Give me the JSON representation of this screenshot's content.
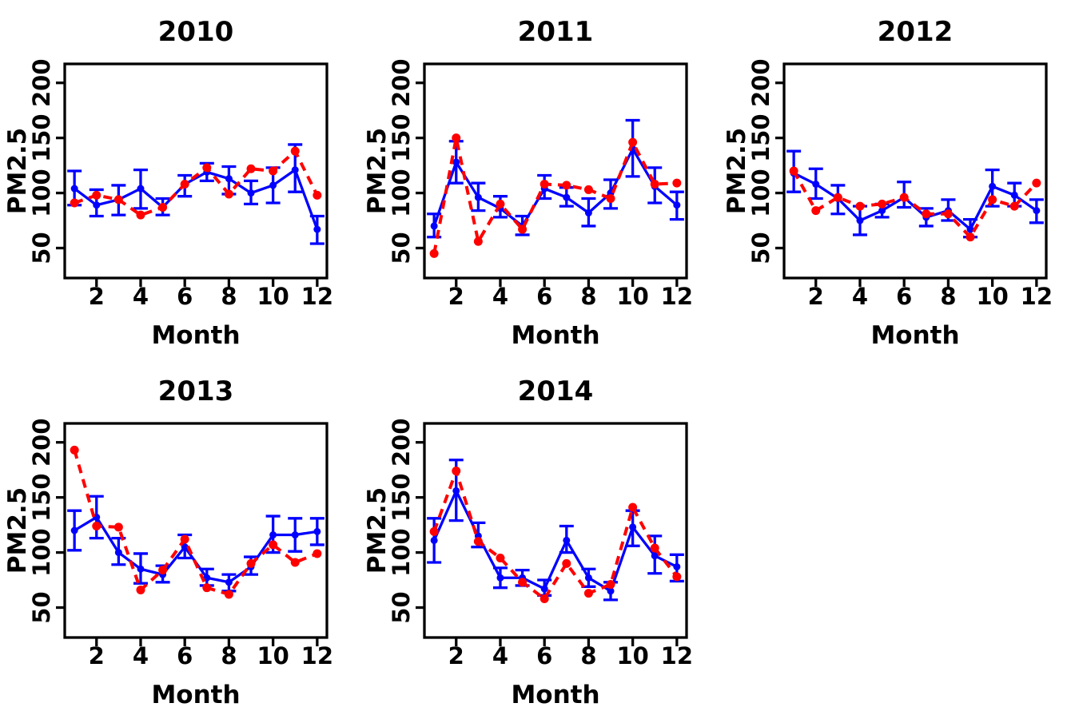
{
  "figure": {
    "background": "#ffffff",
    "grid_layout": {
      "columns": 3,
      "rows": 2,
      "filled_cells": 5
    }
  },
  "colors": {
    "blue_series": "#0000ff",
    "red_series": "#ff0000",
    "axis": "#000000",
    "text": "#000000"
  },
  "chart_data": [
    {
      "type": "line",
      "title": "2010",
      "xlabel": "Month",
      "ylabel": "PM2.5",
      "x": [
        1,
        2,
        3,
        4,
        5,
        6,
        7,
        8,
        9,
        10,
        11,
        12
      ],
      "xticks": [
        2,
        4,
        6,
        8,
        10,
        12
      ],
      "yticks": [
        50,
        100,
        150,
        200
      ],
      "xlim": [
        0.56,
        12.44
      ],
      "ylim": [
        22.8,
        217.2
      ],
      "grid": false,
      "legend": "none",
      "series": [
        {
          "name": "blue-solid-with-error-bars",
          "style": "solid",
          "color": "#0000ff",
          "marker": "circle",
          "values": [
            104,
            89,
            94,
            104,
            87,
            108,
            119,
            113,
            100,
            107,
            121,
            67
          ],
          "ci_low": [
            89,
            79,
            80,
            86,
            80,
            97,
            111,
            99,
            90,
            91,
            101,
            54
          ],
          "ci_high": [
            120,
            103,
            107,
            121,
            95,
            116,
            127,
            124,
            111,
            123,
            144,
            79
          ]
        },
        {
          "name": "red-dashed",
          "style": "dashed",
          "color": "#ff0000",
          "marker": "circle",
          "values": [
            91,
            98,
            94,
            80,
            87,
            108,
            123,
            99,
            122,
            120,
            138,
            98
          ]
        }
      ]
    },
    {
      "type": "line",
      "title": "2011",
      "xlabel": "Month",
      "ylabel": "PM2.5",
      "x": [
        1,
        2,
        3,
        4,
        5,
        6,
        7,
        8,
        9,
        10,
        11,
        12
      ],
      "xticks": [
        2,
        4,
        6,
        8,
        10,
        12
      ],
      "yticks": [
        50,
        100,
        150,
        200
      ],
      "xlim": [
        0.56,
        12.44
      ],
      "ylim": [
        22.8,
        217.2
      ],
      "grid": false,
      "legend": "none",
      "series": [
        {
          "name": "blue-solid-with-error-bars",
          "style": "solid",
          "color": "#0000ff",
          "marker": "circle",
          "values": [
            70,
            128,
            96,
            86,
            70,
            104,
            96,
            82,
            100,
            140,
            106,
            89
          ],
          "ci_low": [
            60,
            109,
            84,
            78,
            62,
            95,
            88,
            70,
            86,
            115,
            91,
            76
          ],
          "ci_high": [
            81,
            147,
            109,
            97,
            79,
            116,
            105,
            95,
            112,
            166,
            123,
            101
          ]
        },
        {
          "name": "red-dashed",
          "style": "dashed",
          "color": "#ff0000",
          "marker": "circle",
          "values": [
            45,
            150,
            56,
            90,
            67,
            108,
            107,
            103,
            95,
            146,
            108,
            109
          ]
        }
      ]
    },
    {
      "type": "line",
      "title": "2012",
      "xlabel": "Month",
      "ylabel": "PM2.5",
      "x": [
        1,
        2,
        3,
        4,
        5,
        6,
        7,
        8,
        9,
        10,
        11,
        12
      ],
      "xticks": [
        2,
        4,
        6,
        8,
        10,
        12
      ],
      "yticks": [
        50,
        100,
        150,
        200
      ],
      "xlim": [
        0.56,
        12.44
      ],
      "ylim": [
        22.8,
        217.2
      ],
      "grid": false,
      "legend": "none",
      "series": [
        {
          "name": "blue-solid-with-error-bars",
          "style": "solid",
          "color": "#0000ff",
          "marker": "circle",
          "values": [
            118,
            108,
            95,
            75,
            84,
            96,
            78,
            84,
            67,
            106,
            98,
            84
          ],
          "ci_low": [
            101,
            95,
            81,
            62,
            78,
            87,
            70,
            75,
            60,
            88,
            88,
            73
          ],
          "ci_high": [
            138,
            122,
            107,
            88,
            90,
            110,
            86,
            94,
            76,
            121,
            109,
            94
          ]
        },
        {
          "name": "red-dashed",
          "style": "dashed",
          "color": "#ff0000",
          "marker": "circle",
          "values": [
            120,
            84,
            96,
            88,
            90,
            96,
            81,
            81,
            60,
            94,
            88,
            109
          ]
        }
      ]
    },
    {
      "type": "line",
      "title": "2013",
      "xlabel": "Month",
      "ylabel": "PM2.5",
      "x": [
        1,
        2,
        3,
        4,
        5,
        6,
        7,
        8,
        9,
        10,
        11,
        12
      ],
      "xticks": [
        2,
        4,
        6,
        8,
        10,
        12
      ],
      "yticks": [
        50,
        100,
        150,
        200
      ],
      "xlim": [
        0.56,
        12.44
      ],
      "ylim": [
        22.8,
        217.2
      ],
      "grid": false,
      "legend": "none",
      "series": [
        {
          "name": "blue-solid-with-error-bars",
          "style": "solid",
          "color": "#0000ff",
          "marker": "circle",
          "values": [
            120,
            132,
            100,
            85,
            80,
            105,
            77,
            73,
            87,
            116,
            116,
            119
          ],
          "ci_low": [
            102,
            113,
            89,
            72,
            73,
            95,
            70,
            65,
            80,
            100,
            101,
            107
          ],
          "ci_high": [
            138,
            151,
            113,
            99,
            88,
            116,
            85,
            80,
            96,
            133,
            131,
            131
          ]
        },
        {
          "name": "red-dashed",
          "style": "dashed",
          "color": "#ff0000",
          "marker": "circle",
          "values": [
            193,
            124,
            123,
            66,
            84,
            112,
            68,
            62,
            90,
            107,
            91,
            99
          ]
        }
      ]
    },
    {
      "type": "line",
      "title": "2014",
      "xlabel": "Month",
      "ylabel": "PM2.5",
      "x": [
        1,
        2,
        3,
        4,
        5,
        6,
        7,
        8,
        9,
        10,
        11,
        12
      ],
      "xticks": [
        2,
        4,
        6,
        8,
        10,
        12
      ],
      "yticks": [
        50,
        100,
        150,
        200
      ],
      "xlim": [
        0.56,
        12.44
      ],
      "ylim": [
        22.8,
        217.2
      ],
      "grid": false,
      "legend": "none",
      "series": [
        {
          "name": "blue-solid-with-error-bars",
          "style": "solid",
          "color": "#0000ff",
          "marker": "circle",
          "values": [
            111,
            156,
            115,
            77,
            77,
            67,
            111,
            77,
            65,
            123,
            97,
            87
          ],
          "ci_low": [
            91,
            129,
            105,
            68,
            70,
            61,
            100,
            69,
            57,
            106,
            81,
            74
          ],
          "ci_high": [
            131,
            184,
            127,
            86,
            84,
            75,
            124,
            85,
            73,
            138,
            115,
            98
          ]
        },
        {
          "name": "red-dashed",
          "style": "dashed",
          "color": "#ff0000",
          "marker": "circle",
          "values": [
            119,
            174,
            110,
            95,
            73,
            58,
            90,
            63,
            71,
            141,
            104,
            78
          ]
        }
      ]
    }
  ]
}
